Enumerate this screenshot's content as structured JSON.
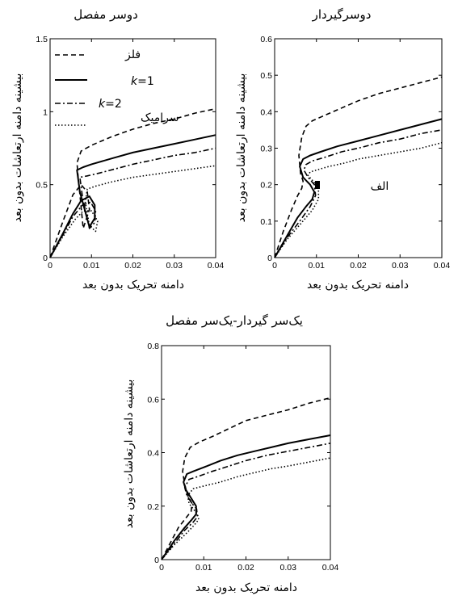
{
  "chart_data": [
    {
      "type": "line",
      "title": "دوسر مفصل",
      "xlabel": "دامنه تحریک بدون بعد",
      "ylabel": "بیشینه دامنه ارتعاشات بدون بعد",
      "xlim": [
        0,
        0.04
      ],
      "ylim": [
        0,
        1.5
      ],
      "xticks": [
        "0",
        "0.01",
        "0.02",
        "0.03",
        "0.04"
      ],
      "yticks": [
        "0",
        "0.5",
        "1",
        "1.5"
      ],
      "grid": false,
      "legend": {
        "placement": "top-left",
        "entries": [
          {
            "label": "فلز",
            "style": "dashed"
          },
          {
            "label_prefix": "k",
            "label_suffix": "=1",
            "style": "solid"
          },
          {
            "label_prefix": "k",
            "label_suffix": "=2",
            "style": "dashdot"
          },
          {
            "label": "سرامیک",
            "style": "dotted"
          }
        ]
      },
      "series": [
        {
          "style": "dashed",
          "x": [
            0,
            0.003,
            0.0055,
            0.0075,
            0.009,
            0.0095,
            0.008,
            0.0068,
            0.0065,
            0.0075,
            0.01,
            0.015,
            0.02,
            0.025,
            0.03,
            0.035,
            0.04
          ],
          "y": [
            0,
            0.24,
            0.43,
            0.5,
            0.45,
            0.33,
            0.2,
            0.55,
            0.65,
            0.73,
            0.77,
            0.83,
            0.88,
            0.92,
            0.95,
            0.99,
            1.02
          ]
        },
        {
          "style": "solid",
          "x": [
            0,
            0.003,
            0.0055,
            0.0075,
            0.0095,
            0.0108,
            0.0108,
            0.0095,
            0.0072,
            0.0065,
            0.008,
            0.01,
            0.015,
            0.02,
            0.025,
            0.03,
            0.035,
            0.04
          ],
          "y": [
            0,
            0.16,
            0.3,
            0.39,
            0.42,
            0.36,
            0.27,
            0.21,
            0.45,
            0.6,
            0.62,
            0.64,
            0.68,
            0.72,
            0.75,
            0.78,
            0.81,
            0.84
          ]
        },
        {
          "style": "dashdot",
          "x": [
            0,
            0.003,
            0.0055,
            0.0078,
            0.0098,
            0.011,
            0.0108,
            0.0095,
            0.0078,
            0.0072,
            0.009,
            0.012,
            0.016,
            0.02,
            0.025,
            0.03,
            0.035,
            0.04
          ],
          "y": [
            0,
            0.15,
            0.28,
            0.36,
            0.38,
            0.32,
            0.24,
            0.2,
            0.42,
            0.55,
            0.56,
            0.58,
            0.61,
            0.64,
            0.67,
            0.7,
            0.72,
            0.75
          ]
        },
        {
          "style": "dotted",
          "x": [
            0,
            0.003,
            0.006,
            0.008,
            0.01,
            0.0115,
            0.011,
            0.0095,
            0.0085,
            0.009,
            0.011,
            0.015,
            0.02,
            0.025,
            0.03,
            0.035,
            0.04
          ],
          "y": [
            0,
            0.14,
            0.26,
            0.32,
            0.32,
            0.25,
            0.18,
            0.22,
            0.38,
            0.47,
            0.49,
            0.52,
            0.55,
            0.57,
            0.59,
            0.61,
            0.63
          ]
        }
      ]
    },
    {
      "type": "line",
      "title": "دوسرگیردار",
      "xlabel": "دامنه تحریک بدون بعد",
      "ylabel": "بیشینه دامنه ارتعاشات بدون بعد",
      "xlim": [
        0,
        0.04
      ],
      "ylim": [
        0,
        0.6
      ],
      "xticks": [
        "0",
        "0.01",
        "0.02",
        "0.03",
        "0.04"
      ],
      "yticks": [
        "0",
        "0.1",
        "0.2",
        "0.3",
        "0.4",
        "0.5",
        "0.6"
      ],
      "grid": false,
      "annotation": "الف",
      "series": [
        {
          "style": "dashed",
          "x": [
            0,
            0.002,
            0.004,
            0.0055,
            0.0065,
            0.0068,
            0.0062,
            0.0058,
            0.0065,
            0.0075,
            0.009,
            0.012,
            0.016,
            0.02,
            0.025,
            0.03,
            0.035,
            0.04
          ],
          "y": [
            0,
            0.07,
            0.13,
            0.17,
            0.19,
            0.21,
            0.23,
            0.28,
            0.33,
            0.36,
            0.375,
            0.39,
            0.41,
            0.43,
            0.45,
            0.465,
            0.48,
            0.495
          ]
        },
        {
          "style": "solid",
          "x": [
            0,
            0.003,
            0.0055,
            0.0075,
            0.009,
            0.0095,
            0.0085,
            0.0068,
            0.006,
            0.0068,
            0.0085,
            0.011,
            0.015,
            0.02,
            0.025,
            0.03,
            0.035,
            0.04
          ],
          "y": [
            0,
            0.06,
            0.11,
            0.14,
            0.16,
            0.18,
            0.2,
            0.22,
            0.25,
            0.27,
            0.28,
            0.29,
            0.305,
            0.32,
            0.335,
            0.35,
            0.365,
            0.38
          ]
        },
        {
          "style": "dashdot",
          "x": [
            0,
            0.003,
            0.006,
            0.0085,
            0.0098,
            0.0095,
            0.008,
            0.007,
            0.0075,
            0.009,
            0.012,
            0.016,
            0.02,
            0.025,
            0.03,
            0.035,
            0.04
          ],
          "y": [
            0,
            0.055,
            0.1,
            0.14,
            0.17,
            0.2,
            0.22,
            0.24,
            0.255,
            0.265,
            0.275,
            0.29,
            0.3,
            0.315,
            0.325,
            0.34,
            0.35
          ]
        },
        {
          "style": "dotted",
          "x": [
            0,
            0.003,
            0.006,
            0.009,
            0.0105,
            0.0105,
            0.0092,
            0.008,
            0.0085,
            0.01,
            0.013,
            0.017,
            0.02,
            0.025,
            0.03,
            0.035,
            0.04
          ],
          "y": [
            0,
            0.05,
            0.09,
            0.13,
            0.16,
            0.19,
            0.21,
            0.225,
            0.235,
            0.24,
            0.25,
            0.26,
            0.27,
            0.28,
            0.29,
            0.3,
            0.315
          ]
        }
      ]
    },
    {
      "type": "line",
      "title": "یک‌سر گیردار-یک‌سر مفصل",
      "xlabel": "دامنه تحریک بدون بعد",
      "ylabel": "بیشینه دامنه ارتعاشات بدون بعد",
      "xlim": [
        0,
        0.04
      ],
      "ylim": [
        0,
        0.8
      ],
      "xticks": [
        "0",
        "0.01",
        "0.02",
        "0.03",
        "0.04"
      ],
      "yticks": [
        "0",
        "0.2",
        "0.4",
        "0.6",
        "0.8"
      ],
      "grid": false,
      "series": [
        {
          "style": "dashed",
          "x": [
            0,
            0.002,
            0.004,
            0.006,
            0.007,
            0.0072,
            0.0062,
            0.0055,
            0.005,
            0.0055,
            0.0068,
            0.009,
            0.012,
            0.016,
            0.02,
            0.025,
            0.03,
            0.035,
            0.04
          ],
          "y": [
            0,
            0.06,
            0.12,
            0.16,
            0.18,
            0.21,
            0.24,
            0.28,
            0.33,
            0.38,
            0.42,
            0.44,
            0.46,
            0.49,
            0.52,
            0.54,
            0.56,
            0.585,
            0.605
          ]
        },
        {
          "style": "solid",
          "x": [
            0,
            0.003,
            0.0055,
            0.0072,
            0.0082,
            0.0082,
            0.007,
            0.0058,
            0.0052,
            0.006,
            0.0075,
            0.01,
            0.014,
            0.018,
            0.022,
            0.026,
            0.03,
            0.035,
            0.04
          ],
          "y": [
            0,
            0.07,
            0.12,
            0.15,
            0.17,
            0.2,
            0.23,
            0.26,
            0.29,
            0.32,
            0.33,
            0.345,
            0.37,
            0.39,
            0.405,
            0.42,
            0.435,
            0.45,
            0.465
          ]
        },
        {
          "style": "dashdot",
          "x": [
            0,
            0.003,
            0.0055,
            0.0075,
            0.0085,
            0.0083,
            0.0072,
            0.006,
            0.0055,
            0.0065,
            0.0085,
            0.012,
            0.016,
            0.02,
            0.025,
            0.03,
            0.035,
            0.04
          ],
          "y": [
            0,
            0.06,
            0.11,
            0.14,
            0.16,
            0.19,
            0.21,
            0.24,
            0.27,
            0.3,
            0.31,
            0.33,
            0.35,
            0.37,
            0.39,
            0.405,
            0.42,
            0.435
          ]
        },
        {
          "style": "dotted",
          "x": [
            0,
            0.003,
            0.006,
            0.0078,
            0.0088,
            0.0085,
            0.0075,
            0.0065,
            0.0062,
            0.0075,
            0.01,
            0.014,
            0.018,
            0.022,
            0.026,
            0.03,
            0.035,
            0.04
          ],
          "y": [
            0,
            0.055,
            0.1,
            0.13,
            0.15,
            0.17,
            0.19,
            0.21,
            0.24,
            0.265,
            0.275,
            0.29,
            0.31,
            0.325,
            0.34,
            0.35,
            0.365,
            0.38
          ]
        }
      ]
    }
  ]
}
